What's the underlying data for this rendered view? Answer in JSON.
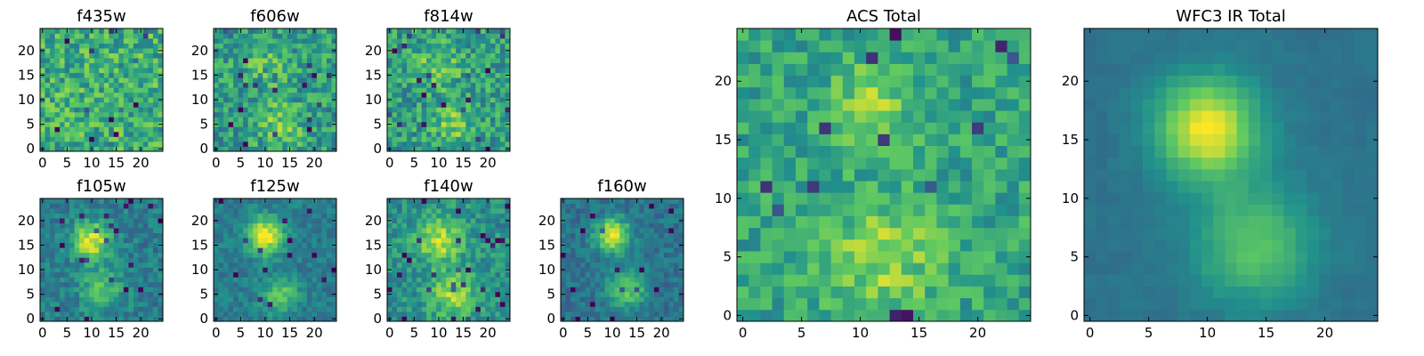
{
  "figure": {
    "colormap": "viridis",
    "colormap_stops": [
      "#440154",
      "#3b528b",
      "#21918c",
      "#5ec962",
      "#fde725"
    ]
  },
  "chart_data": [
    {
      "type": "heatmap",
      "title": "f435w",
      "grid_size": [
        25,
        25
      ],
      "x_ticks": [
        "0",
        "5",
        "10",
        "15",
        "20"
      ],
      "y_ticks": [
        "0",
        "5",
        "10",
        "15",
        "20"
      ],
      "xlim": [
        -0.5,
        24.5
      ],
      "ylim": [
        -0.5,
        24.5
      ],
      "pattern": "noise",
      "noise": 0.22,
      "base": 0.62,
      "seed": 11,
      "sources": []
    },
    {
      "type": "heatmap",
      "title": "f606w",
      "grid_size": [
        25,
        25
      ],
      "x_ticks": [
        "0",
        "5",
        "10",
        "15",
        "20"
      ],
      "y_ticks": [
        "0",
        "5",
        "10",
        "15",
        "20"
      ],
      "xlim": [
        -0.5,
        24.5
      ],
      "ylim": [
        -0.5,
        24.5
      ],
      "pattern": "noise+sources",
      "noise": 0.2,
      "base": 0.55,
      "seed": 23,
      "sources": [
        {
          "x": 10,
          "y": 17,
          "amp": 0.18,
          "sigma": 3
        },
        {
          "x": 13,
          "y": 5,
          "amp": 0.25,
          "sigma": 3
        }
      ]
    },
    {
      "type": "heatmap",
      "title": "f814w",
      "grid_size": [
        25,
        25
      ],
      "x_ticks": [
        "0",
        "5",
        "10",
        "15",
        "20"
      ],
      "y_ticks": [
        "0",
        "5",
        "10",
        "15",
        "20"
      ],
      "xlim": [
        -0.5,
        24.5
      ],
      "ylim": [
        -0.5,
        24.5
      ],
      "pattern": "noise+sources",
      "noise": 0.2,
      "base": 0.55,
      "seed": 37,
      "sources": [
        {
          "x": 10,
          "y": 17,
          "amp": 0.22,
          "sigma": 3
        },
        {
          "x": 13,
          "y": 5,
          "amp": 0.22,
          "sigma": 3
        }
      ]
    },
    {
      "type": "heatmap",
      "title": "f105w",
      "grid_size": [
        25,
        25
      ],
      "x_ticks": [
        "0",
        "5",
        "10",
        "15",
        "20"
      ],
      "y_ticks": [
        "0",
        "5",
        "10",
        "15",
        "20"
      ],
      "xlim": [
        -0.5,
        24.5
      ],
      "ylim": [
        -0.5,
        24.5
      ],
      "pattern": "noise+sources",
      "noise": 0.12,
      "base": 0.42,
      "seed": 41,
      "sources": [
        {
          "x": 10,
          "y": 16,
          "amp": 0.55,
          "sigma": 2.6
        },
        {
          "x": 12,
          "y": 6,
          "amp": 0.3,
          "sigma": 3
        }
      ]
    },
    {
      "type": "heatmap",
      "title": "f125w",
      "grid_size": [
        25,
        25
      ],
      "x_ticks": [
        "0",
        "5",
        "10",
        "15",
        "20"
      ],
      "y_ticks": [
        "0",
        "5",
        "10",
        "15",
        "20"
      ],
      "xlim": [
        -0.5,
        24.5
      ],
      "ylim": [
        -0.5,
        24.5
      ],
      "pattern": "noise+sources",
      "noise": 0.1,
      "base": 0.42,
      "seed": 53,
      "sources": [
        {
          "x": 10,
          "y": 17,
          "amp": 0.58,
          "sigma": 2.6
        },
        {
          "x": 13,
          "y": 5,
          "amp": 0.35,
          "sigma": 2.4
        }
      ]
    },
    {
      "type": "heatmap",
      "title": "f140w",
      "grid_size": [
        25,
        25
      ],
      "x_ticks": [
        "0",
        "5",
        "10",
        "15",
        "20"
      ],
      "y_ticks": [
        "0",
        "5",
        "10",
        "15",
        "20"
      ],
      "xlim": [
        -0.5,
        24.5
      ],
      "ylim": [
        -0.5,
        24.5
      ],
      "pattern": "noise+sources",
      "noise": 0.14,
      "base": 0.5,
      "seed": 67,
      "sources": [
        {
          "x": 10,
          "y": 16,
          "amp": 0.4,
          "sigma": 3.2
        },
        {
          "x": 13,
          "y": 5,
          "amp": 0.35,
          "sigma": 3.2
        }
      ]
    },
    {
      "type": "heatmap",
      "title": "f160w",
      "grid_size": [
        25,
        25
      ],
      "x_ticks": [
        "0",
        "5",
        "10",
        "15",
        "20"
      ],
      "y_ticks": [
        "0",
        "5",
        "10",
        "15",
        "20"
      ],
      "xlim": [
        -0.5,
        24.5
      ],
      "ylim": [
        -0.5,
        24.5
      ],
      "pattern": "noise+sources",
      "noise": 0.1,
      "base": 0.38,
      "seed": 79,
      "sources": [
        {
          "x": 10,
          "y": 17,
          "amp": 0.6,
          "sigma": 2.4
        },
        {
          "x": 13,
          "y": 6,
          "amp": 0.35,
          "sigma": 2.8
        }
      ]
    },
    {
      "type": "heatmap",
      "title": "ACS Total",
      "grid_size": [
        25,
        25
      ],
      "x_ticks": [
        "0",
        "5",
        "10",
        "15",
        "20"
      ],
      "y_ticks": [
        "0",
        "5",
        "10",
        "15",
        "20"
      ],
      "xlim": [
        -0.5,
        24.5
      ],
      "ylim": [
        -0.5,
        24.5
      ],
      "pattern": "noise+sources",
      "noise": 0.15,
      "base": 0.58,
      "seed": 97,
      "sources": [
        {
          "x": 11,
          "y": 18,
          "amp": 0.22,
          "sigma": 2.5
        },
        {
          "x": 12,
          "y": 5,
          "amp": 0.25,
          "sigma": 3.5
        }
      ]
    },
    {
      "type": "heatmap",
      "title": "WFC3 IR Total",
      "grid_size": [
        25,
        25
      ],
      "x_ticks": [
        "0",
        "5",
        "10",
        "15",
        "20"
      ],
      "y_ticks": [
        "0",
        "5",
        "10",
        "15",
        "20"
      ],
      "xlim": [
        -0.5,
        24.5
      ],
      "ylim": [
        -0.5,
        24.5
      ],
      "pattern": "smooth+sources",
      "noise": 0.05,
      "base": 0.38,
      "seed": 113,
      "sources": [
        {
          "x": 10,
          "y": 16,
          "amp": 0.62,
          "sigma": 3
        },
        {
          "x": 14,
          "y": 6,
          "amp": 0.35,
          "sigma": 3.5
        }
      ]
    }
  ]
}
